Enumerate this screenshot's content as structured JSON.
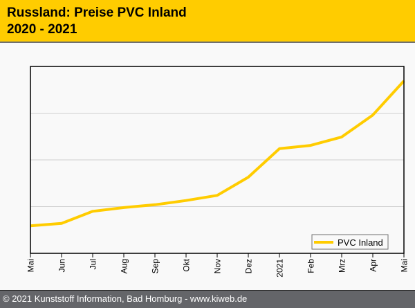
{
  "header": {
    "title_line1": "Russland: Preise PVC Inland",
    "title_line2": "2020 - 2021"
  },
  "footer": {
    "text": "© 2021 Kunststoff Information, Bad Homburg - www.kiweb.de"
  },
  "colors": {
    "header_bg": "#ffcc00",
    "series": "#ffcc00",
    "footer_bg": "#646569",
    "grid": "#d0d0d0"
  },
  "chart_data": {
    "type": "line",
    "title": "Russland: Preise PVC Inland 2020 - 2021",
    "xlabel": "",
    "ylabel": "",
    "categories": [
      "Mai",
      "Jun",
      "Jul",
      "Aug",
      "Sep",
      "Okt",
      "Nov",
      "Dez",
      "2021",
      "Feb",
      "Mrz",
      "Apr",
      "Mai"
    ],
    "series": [
      {
        "name": "PVC Inland",
        "values": [
          0.59,
          0.64,
          0.9,
          0.98,
          1.04,
          1.13,
          1.24,
          1.63,
          2.24,
          2.31,
          2.49,
          2.96,
          3.69
        ]
      }
    ],
    "ylim": [
      0,
      4
    ],
    "y_gridlines": [
      1,
      2,
      3
    ],
    "y_tick_labels_shown": false,
    "grid": true,
    "legend": "bottom-right"
  }
}
